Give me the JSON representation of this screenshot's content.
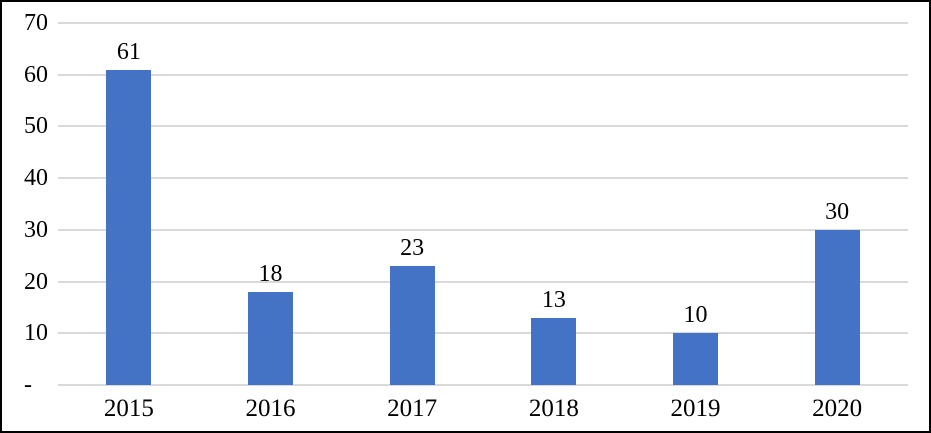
{
  "chart_data": {
    "type": "bar",
    "title": "",
    "xlabel": "",
    "ylabel": "",
    "categories": [
      "2015",
      "2016",
      "2017",
      "2018",
      "2019",
      "2020"
    ],
    "values": [
      61,
      18,
      23,
      13,
      10,
      30
    ],
    "data_labels": [
      "61",
      "18",
      "23",
      "13",
      "10",
      "30"
    ],
    "ylim": [
      0,
      70
    ],
    "ytick_interval": 10,
    "yticks": [
      {
        "value": 70,
        "label": "70"
      },
      {
        "value": 60,
        "label": "60"
      },
      {
        "value": 50,
        "label": "50"
      },
      {
        "value": 40,
        "label": "40"
      },
      {
        "value": 30,
        "label": "30"
      },
      {
        "value": 20,
        "label": "20"
      },
      {
        "value": 10,
        "label": "10"
      },
      {
        "value": 0,
        "label": "-"
      }
    ],
    "grid": true,
    "legend": "none",
    "colors": {
      "bar": "#4472C4",
      "gridline": "#D9D9D9",
      "axis_line": "#D9D9D9",
      "text": "#000000",
      "frame_border": "#000000",
      "background": "#FFFFFF"
    }
  }
}
